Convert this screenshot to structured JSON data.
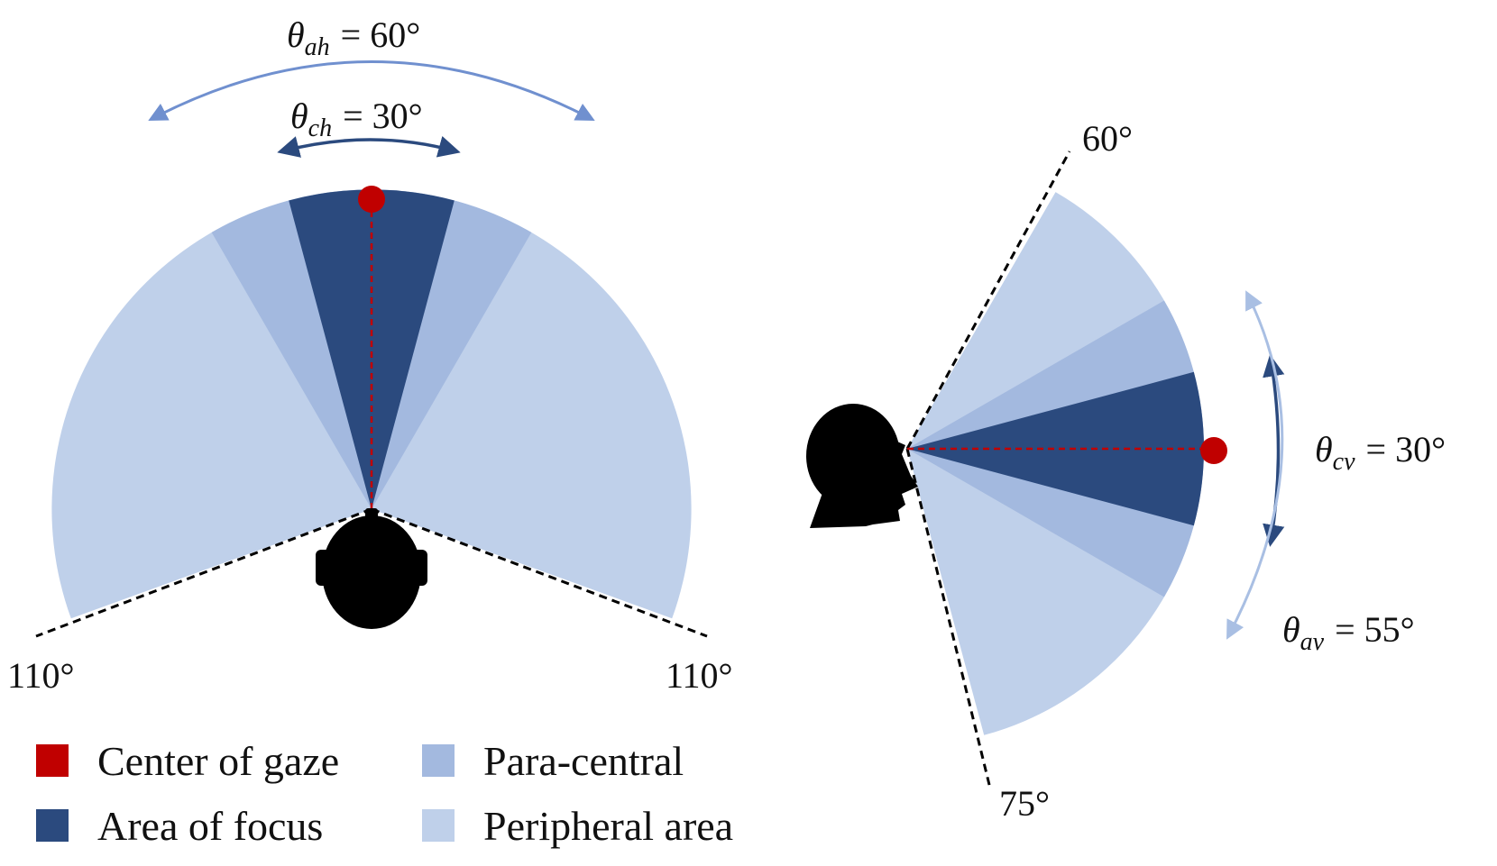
{
  "colors": {
    "center_of_gaze": "#c00000",
    "area_of_focus": "#2b4a7e",
    "para_central": "#a3b9df",
    "peripheral": "#bfd0ea",
    "arrow_outer_top": "#7090cf",
    "arrow_outer_side": "#a9bfe3",
    "boundary_line": "#000000",
    "gaze_line": "#c00000",
    "head": "#000000"
  },
  "horizontal": {
    "label_ah": {
      "theta": "θ",
      "sub": "ah",
      "value": "= 60°"
    },
    "label_ch": {
      "theta": "θ",
      "sub": "ch",
      "value": "= 30°"
    },
    "left_limit": "110°",
    "right_limit": "110°",
    "head_icon": "head-top-view-icon"
  },
  "vertical": {
    "top_limit": "60°",
    "bottom_limit": "75°",
    "label_cv": {
      "theta": "θ",
      "sub": "cv",
      "value": "= 30°"
    },
    "label_av": {
      "theta": "θ",
      "sub": "av",
      "value": "= 55°"
    },
    "head_icon": "head-side-view-icon"
  },
  "legend": [
    {
      "label": "Center of gaze",
      "color": "#c00000"
    },
    {
      "label": "Para-central",
      "color": "#a3b9df"
    },
    {
      "label": "Area of focus",
      "color": "#2b4a7e"
    },
    {
      "label": "Peripheral area",
      "color": "#bfd0ea"
    }
  ]
}
